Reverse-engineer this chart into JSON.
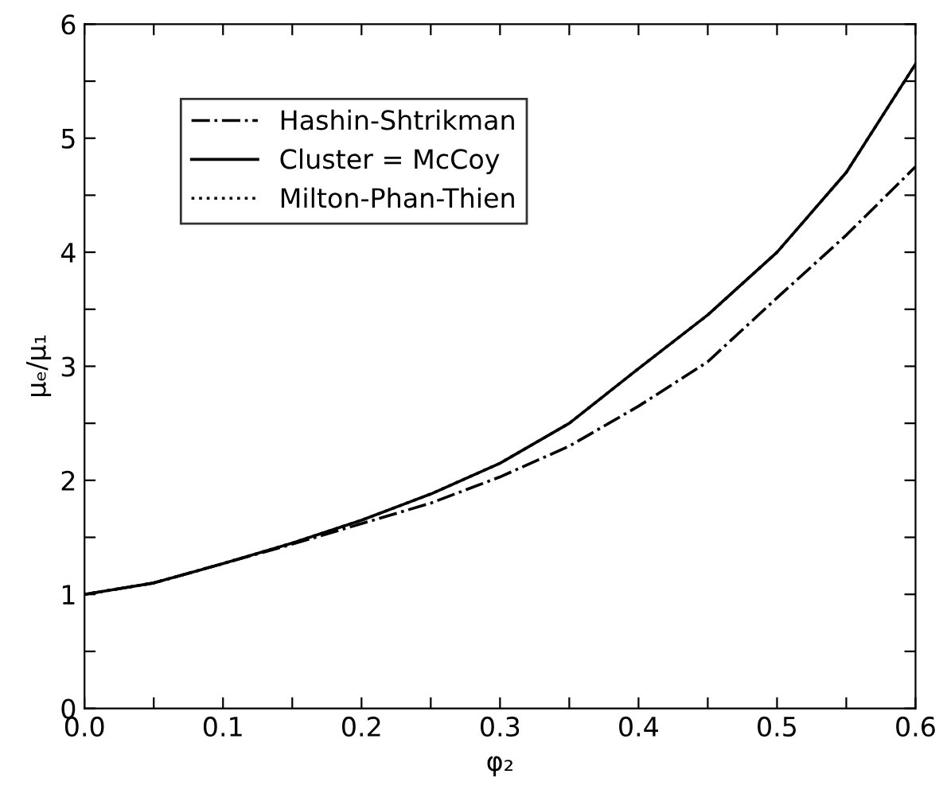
{
  "chart_data": {
    "type": "line",
    "xlabel": "φ₂",
    "ylabel": "μₑ/μ₁",
    "xlim": [
      0,
      0.6
    ],
    "ylim": [
      0,
      6
    ],
    "xticks": [
      {
        "value": 0,
        "label": "0.0"
      },
      {
        "value": 0.05,
        "label": null
      },
      {
        "value": 0.1,
        "label": "0.1"
      },
      {
        "value": 0.15,
        "label": null
      },
      {
        "value": 0.2,
        "label": "0.2"
      },
      {
        "value": 0.25,
        "label": null
      },
      {
        "value": 0.3,
        "label": "0.3"
      },
      {
        "value": 0.35,
        "label": null
      },
      {
        "value": 0.4,
        "label": "0.4"
      },
      {
        "value": 0.45,
        "label": null
      },
      {
        "value": 0.5,
        "label": "0.5"
      },
      {
        "value": 0.55,
        "label": null
      },
      {
        "value": 0.6,
        "label": "0.6"
      }
    ],
    "yticks": [
      0,
      {
        "value": 0.5,
        "label": null
      },
      1,
      {
        "value": 1.5,
        "label": null
      },
      2,
      {
        "value": 2.5,
        "label": null
      },
      3,
      {
        "value": 3.5,
        "label": null
      },
      4,
      {
        "value": 4.5,
        "label": null
      },
      5,
      {
        "value": 5.5,
        "label": null
      },
      6
    ],
    "x": [
      0,
      0.05,
      0.1,
      0.15,
      0.2,
      0.25,
      0.3,
      0.35,
      0.4,
      0.45,
      0.5,
      0.55,
      0.6
    ],
    "legend": "top left",
    "grid": false,
    "marker": "none",
    "series": [
      {
        "name": "Hashin-Shtrikman",
        "color": "#000000",
        "line_style": "dashdot",
        "values": [
          1.0,
          1.1,
          1.27,
          1.44,
          1.62,
          1.8,
          2.03,
          2.3,
          2.65,
          3.04,
          3.6,
          4.15,
          4.75
        ]
      },
      {
        "name": "Cluster = McCoy",
        "color": "#000000",
        "line_style": "solid",
        "values": [
          1.0,
          1.1,
          1.27,
          1.45,
          1.65,
          1.88,
          2.15,
          2.5,
          2.98,
          3.45,
          4.0,
          4.7,
          5.65
        ]
      },
      {
        "name": "Milton-Phan-Thien",
        "color": "#000000",
        "line_style": "dotted",
        "values": [
          1.0,
          1.1,
          1.27,
          1.45,
          1.65,
          1.88,
          2.15,
          2.5,
          2.98,
          3.45,
          4.0,
          4.7,
          5.65
        ]
      }
    ]
  }
}
